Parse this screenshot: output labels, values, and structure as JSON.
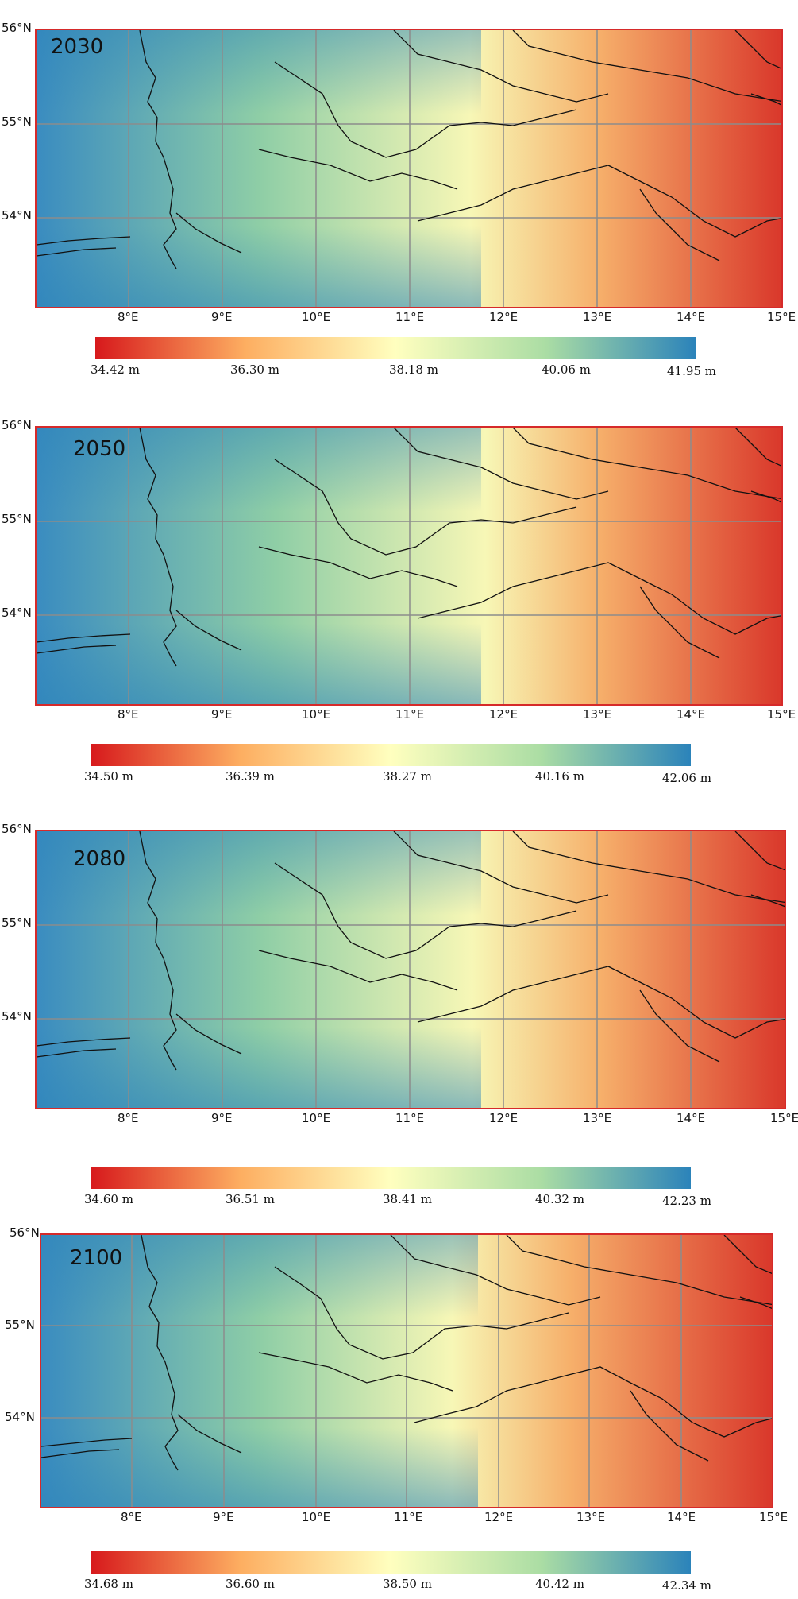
{
  "panels": [
    {
      "year": "2030",
      "lat_labels": [
        "56°N",
        "55°N",
        "54°N"
      ],
      "lon_labels": [
        "8°E",
        "9°E",
        "10°E",
        "11°E",
        "12°E",
        "13°E",
        "14°E",
        "15°E"
      ],
      "colorbar_labels": [
        "34.42 m",
        "36.30 m",
        "38.18 m",
        "40.06 m",
        "41.95 m"
      ]
    },
    {
      "year": "2050",
      "lat_labels": [
        "56°N",
        "55°N",
        "54°N"
      ],
      "lon_labels": [
        "8°E",
        "9°E",
        "10°E",
        "11°E",
        "12°E",
        "13°E",
        "14°E",
        "15°E"
      ],
      "colorbar_labels": [
        "34.50 m",
        "36.39 m",
        "38.27 m",
        "40.16 m",
        "42.06 m"
      ]
    },
    {
      "year": "2080",
      "lat_labels": [
        "56°N",
        "55°N",
        "54°N"
      ],
      "lon_labels": [
        "8°E",
        "9°E",
        "10°E",
        "11°E",
        "12°E",
        "13°E",
        "14°E",
        "15°E"
      ],
      "colorbar_labels": [
        "34.60 m",
        "36.51 m",
        "38.41 m",
        "40.32 m",
        "42.23 m"
      ]
    },
    {
      "year": "2100",
      "lat_labels": [
        "56°N",
        "55°N",
        "54°N"
      ],
      "lon_labels": [
        "8°E",
        "9°E",
        "10°E",
        "11°E",
        "12°E",
        "13°E",
        "14°E",
        "15°E"
      ],
      "colorbar_labels": [
        "34.68 m",
        "36.60 m",
        "38.50 m",
        "40.42 m",
        "42.34 m"
      ]
    }
  ],
  "colors": {
    "frame": "#d62a2a",
    "grid": "#8c8c8c",
    "coast": "#111111",
    "low": "#d7191c",
    "high": "#2b83ba"
  }
}
